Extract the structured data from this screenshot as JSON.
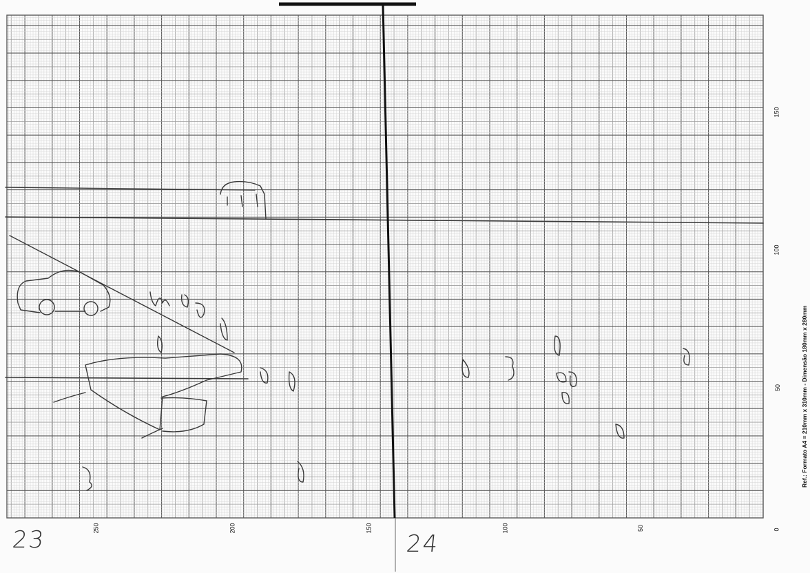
{
  "sheet": {
    "axis_bottom": [
      "250",
      "200",
      "150",
      "100",
      "50",
      "0"
    ],
    "axis_right": [
      "150",
      "100",
      "50"
    ],
    "reference": "Ref.: Formato A4 = 210mm x 310mm - Dimensão 180mm x 280mm",
    "sheet_left_number": "23",
    "sheet_right_number": "24"
  },
  "colors": {
    "paper": "#fbfbfb",
    "grid_fine": "#d4d4d4",
    "grid_mid": "#9e9e9e",
    "grid_major": "#5a5a5a",
    "ink": "#2a2a2a"
  }
}
